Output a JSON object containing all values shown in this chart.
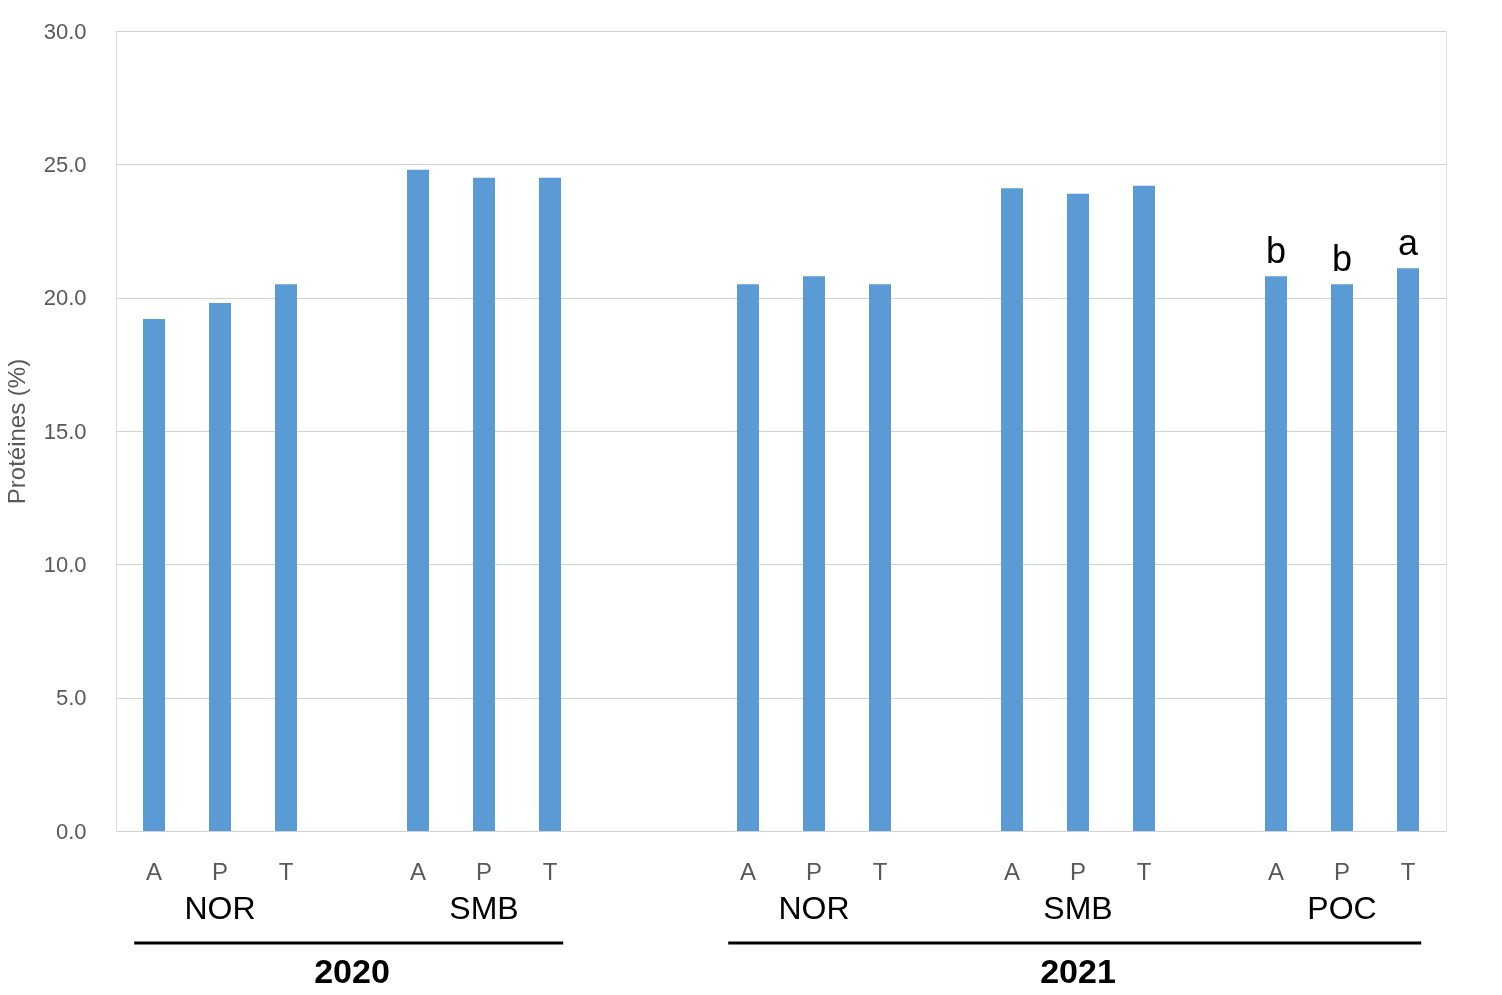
{
  "chart_data": {
    "type": "bar",
    "ylabel": "Protéines (%)",
    "categories": [
      "A",
      "P",
      "T",
      null,
      "A",
      "P",
      "T",
      null,
      null,
      "A",
      "P",
      "T",
      null,
      "A",
      "P",
      "T",
      null,
      "A",
      "P",
      "T"
    ],
    "values": [
      19.2,
      19.8,
      20.5,
      null,
      24.8,
      24.5,
      24.5,
      null,
      null,
      20.5,
      20.8,
      20.5,
      null,
      24.1,
      23.9,
      24.2,
      null,
      20.8,
      20.5,
      21.1
    ],
    "value_labels": [
      null,
      null,
      null,
      null,
      null,
      null,
      null,
      null,
      null,
      null,
      null,
      null,
      null,
      null,
      null,
      null,
      null,
      "b",
      "b",
      "a"
    ],
    "color": "#5b9bd5",
    "ylim": [
      0,
      30
    ],
    "yticks": [
      {
        "value": 0,
        "label": "0.0"
      },
      {
        "value": 5,
        "label": "5.0"
      },
      {
        "value": 10,
        "label": "10.0"
      },
      {
        "value": 15,
        "label": "15.0"
      },
      {
        "value": 20,
        "label": "20.0"
      },
      {
        "value": 25,
        "label": "25.0"
      },
      {
        "value": 30,
        "label": "30.0"
      }
    ],
    "grid": "y",
    "annotations": [
      "NOR",
      "SMB",
      "NOR",
      "SMB",
      "POC",
      "2020",
      "2021"
    ]
  }
}
